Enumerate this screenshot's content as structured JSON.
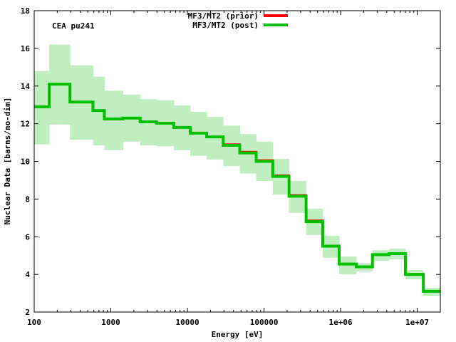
{
  "chart_data": {
    "type": "line",
    "step": true,
    "title": "",
    "annotation": "CEA pu241",
    "xlabel": "Energy [eV]",
    "ylabel": "Nuclear Data [barns/no-dim]",
    "xscale": "log",
    "xlim": [
      100,
      20000000
    ],
    "ylim": [
      2,
      18
    ],
    "xticks": [
      100,
      1000,
      10000,
      100000,
      1000000,
      10000000
    ],
    "xtick_labels": [
      "100",
      "1000",
      "10000",
      "100000",
      "1e+06",
      "1e+07"
    ],
    "yticks": [
      2,
      4,
      6,
      8,
      10,
      12,
      14,
      16,
      18
    ],
    "ytick_labels": [
      "2",
      "4",
      "6",
      "8",
      "10",
      "12",
      "14",
      "16",
      "18"
    ],
    "legend_position": "top-center",
    "bin_edges": [
      100,
      157,
      293,
      584,
      823,
      1440,
      2420,
      3960,
      6630,
      10900,
      17800,
      29300,
      48200,
      79000,
      130000,
      212000,
      354000,
      584000,
      958000,
      1600000,
      2600000,
      4300000,
      7000000,
      12000000,
      20000000
    ],
    "series": [
      {
        "name": "MF3/MT2 (prior)",
        "color": "#ff0000",
        "values": [
          12.9,
          14.1,
          13.15,
          12.7,
          12.25,
          12.3,
          12.1,
          12.03,
          11.8,
          11.5,
          11.3,
          10.9,
          10.5,
          10.05,
          9.25,
          8.2,
          6.85,
          5.5,
          4.55,
          4.4,
          5.05,
          5.1,
          4.0,
          3.1
        ]
      },
      {
        "name": "MF3/MT2 (post)",
        "color": "#00c000",
        "values": [
          12.9,
          14.1,
          13.15,
          12.7,
          12.25,
          12.3,
          12.1,
          12.03,
          11.8,
          11.5,
          11.3,
          10.85,
          10.45,
          10.0,
          9.2,
          8.15,
          6.8,
          5.5,
          4.55,
          4.4,
          5.05,
          5.1,
          4.0,
          3.1
        ],
        "band_color": "#c0eec0",
        "band_lower": [
          10.9,
          11.95,
          11.15,
          10.85,
          10.6,
          11.05,
          10.85,
          10.8,
          10.6,
          10.3,
          10.1,
          9.75,
          9.35,
          8.96,
          8.24,
          7.26,
          6.09,
          4.88,
          4.0,
          4.16,
          4.72,
          4.8,
          3.74,
          2.87
        ],
        "band_upper": [
          14.8,
          16.2,
          15.1,
          14.5,
          13.75,
          13.55,
          13.3,
          13.25,
          12.97,
          12.63,
          12.37,
          11.9,
          11.45,
          11.05,
          10.13,
          8.96,
          7.49,
          6.05,
          4.95,
          4.6,
          5.28,
          5.37,
          4.23,
          3.29
        ]
      }
    ]
  }
}
